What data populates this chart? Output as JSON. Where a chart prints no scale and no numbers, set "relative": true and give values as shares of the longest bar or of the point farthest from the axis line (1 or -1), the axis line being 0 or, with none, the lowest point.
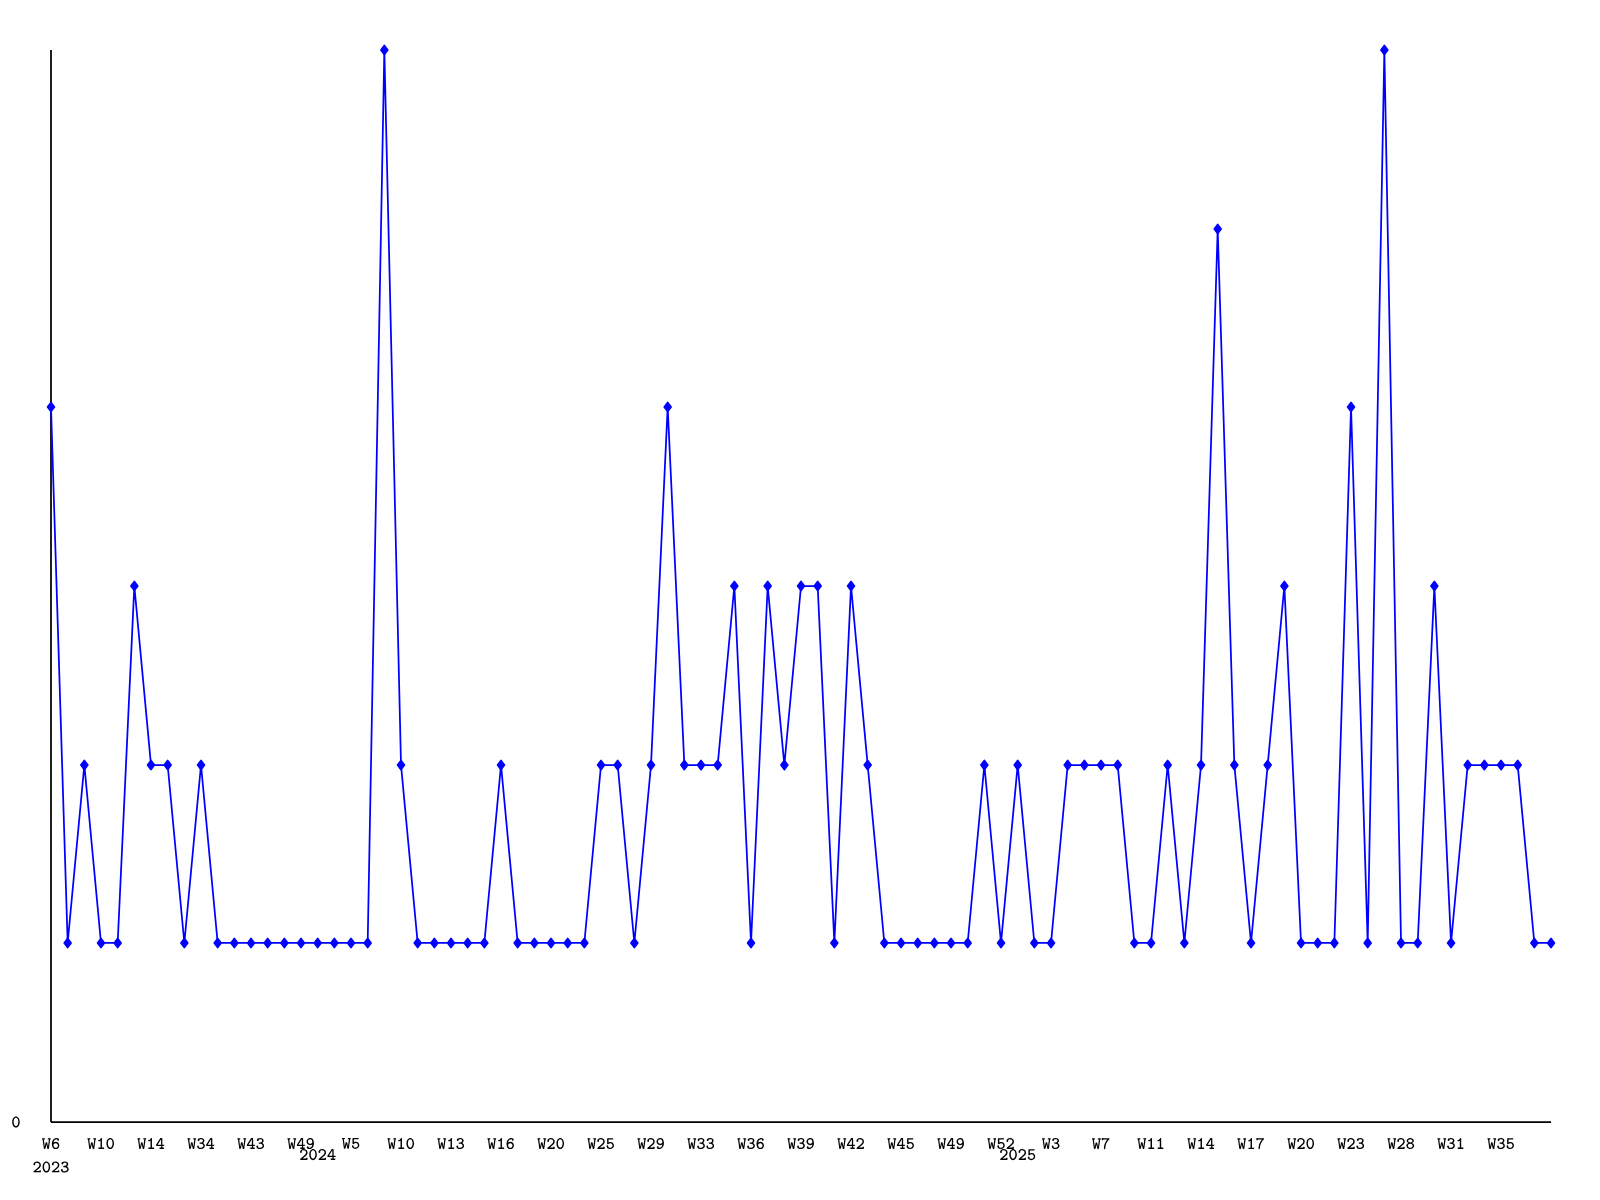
{
  "chart_data": {
    "type": "line",
    "relative": true,
    "color": "#0000ff",
    "marker": "diamond",
    "grid": false,
    "categories": [
      "W6",
      null,
      null,
      "W10",
      null,
      null,
      "W14",
      null,
      null,
      "W34",
      null,
      null,
      "W43",
      null,
      null,
      "W49",
      "2024",
      null,
      "W5",
      null,
      null,
      "W10",
      null,
      null,
      "W13",
      null,
      null,
      "W16",
      null,
      null,
      "W20",
      null,
      null,
      "W25",
      null,
      null,
      "W29",
      null,
      null,
      "W33",
      null,
      null,
      "W36",
      null,
      null,
      "W39",
      null,
      null,
      "W42",
      null,
      null,
      "W45",
      null,
      null,
      "W49",
      null,
      null,
      "W52",
      "2025",
      null,
      "W3",
      null,
      null,
      "W7",
      null,
      null,
      "W11",
      null,
      null,
      "W14",
      null,
      null,
      "W17",
      null,
      null,
      "W20",
      null,
      null,
      "W23",
      null,
      null,
      "W28",
      null,
      null,
      "W31",
      null,
      null,
      "W35",
      null,
      null,
      null
    ],
    "values": [
      0.667,
      0.167,
      0.333,
      0.167,
      0.167,
      0.5,
      0.333,
      0.333,
      0.167,
      0.333,
      0.167,
      0.167,
      0.167,
      0.167,
      0.167,
      0.167,
      0.167,
      0.167,
      0.167,
      0.167,
      1,
      0.333,
      0.167,
      0.167,
      0.167,
      0.167,
      0.167,
      0.333,
      0.167,
      0.167,
      0.167,
      0.167,
      0.167,
      0.333,
      0.333,
      0.167,
      0.333,
      0.667,
      0.333,
      0.333,
      0.333,
      0.5,
      0.167,
      0.5,
      0.333,
      0.5,
      0.5,
      0.167,
      0.5,
      0.333,
      0.167,
      0.167,
      0.167,
      0.167,
      0.167,
      0.167,
      0.333,
      0.167,
      0.333,
      0.167,
      0.167,
      0.333,
      0.333,
      0.333,
      0.333,
      0.167,
      0.167,
      0.333,
      0.167,
      0.333,
      0.833,
      0.333,
      0.167,
      0.333,
      0.5,
      0.167,
      0.167,
      0.167,
      0.667,
      0.167,
      1,
      0.167,
      0.167,
      0.5,
      0.167,
      0.333,
      0.333,
      0.333,
      0.333,
      0.167,
      0.167
    ],
    "annotations": [
      "0",
      "2023"
    ]
  }
}
